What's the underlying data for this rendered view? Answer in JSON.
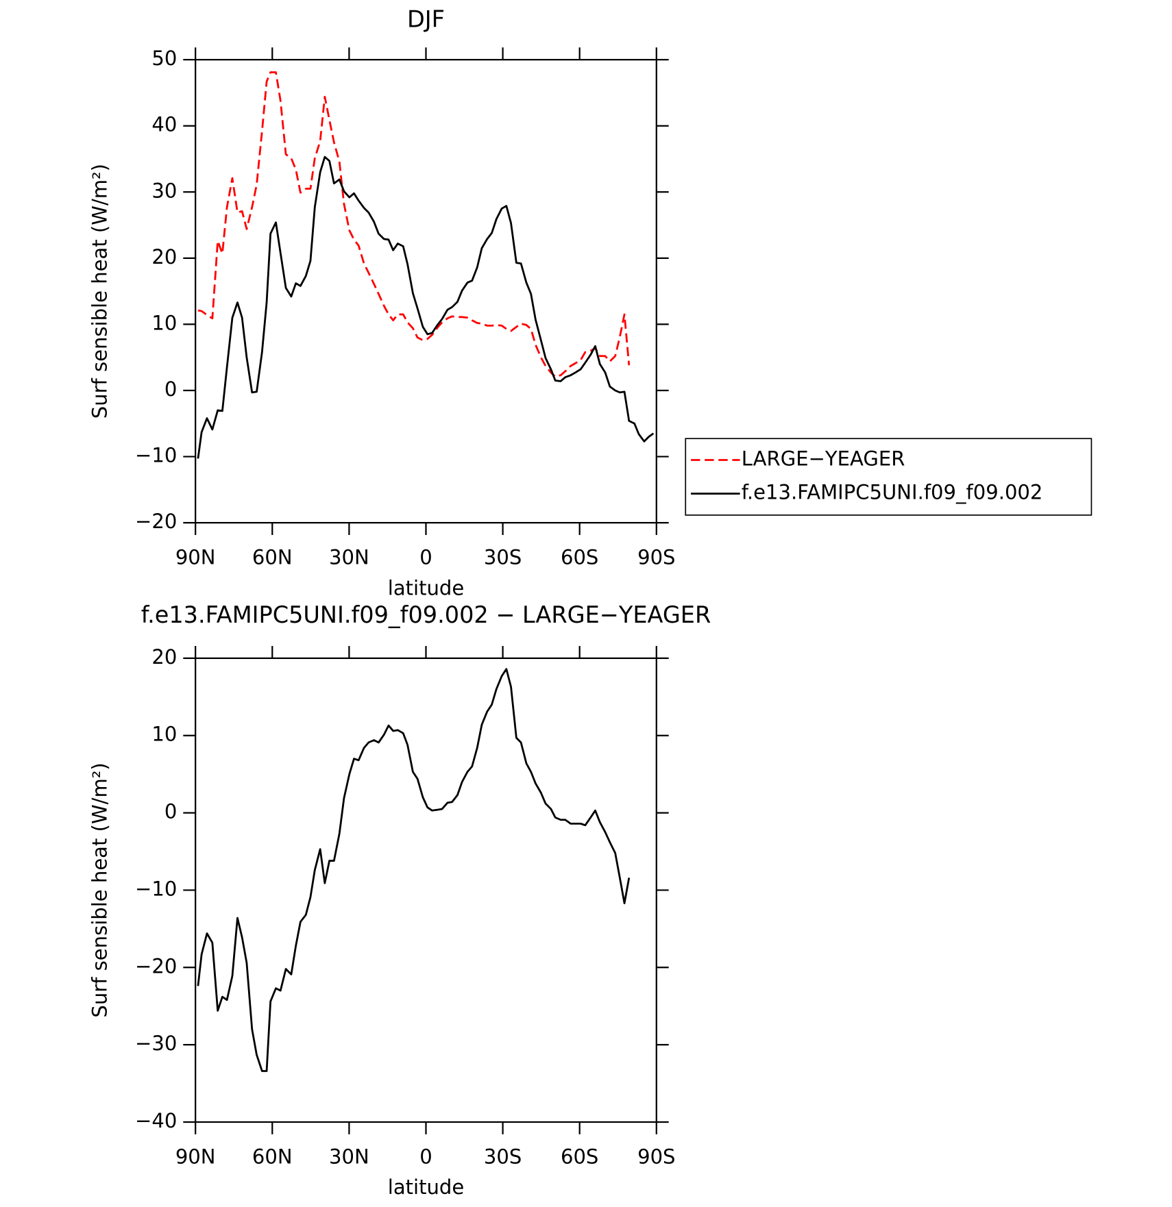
{
  "chart_data": [
    {
      "type": "line",
      "title": "DJF",
      "xlabel": "latitude",
      "ylabel": "Surf sensible heat (W/m²)",
      "xlim": [
        90,
        -90
      ],
      "xticks": [
        {
          "value": 90,
          "label": "90N"
        },
        {
          "value": 60,
          "label": "60N"
        },
        {
          "value": 30,
          "label": "30N"
        },
        0,
        {
          "value": -30,
          "label": "30S"
        },
        {
          "value": -60,
          "label": "60S"
        },
        {
          "value": -90,
          "label": "90S"
        }
      ],
      "ylim": [
        -20,
        50
      ],
      "yticks": [
        {
          "value": -20,
          "label": "−20"
        },
        {
          "value": -10,
          "label": "−10"
        },
        0,
        10,
        20,
        30,
        40,
        50
      ],
      "legend": "right",
      "x": [
        89,
        87.6,
        85.5,
        83.4,
        81.3,
        79.5,
        77.7,
        75.6,
        73.6,
        71.8,
        70,
        67.9,
        66.1,
        64,
        62.2,
        60.7,
        58.6,
        56.8,
        54.7,
        52.6,
        50.8,
        49,
        46.9,
        45.1,
        43.4,
        41.3,
        39.5,
        37.7,
        35.9,
        33.8,
        32,
        29.9,
        28.1,
        26.3,
        24.2,
        22.4,
        20.3,
        18.5,
        16.4,
        14.6,
        12.8,
        11,
        8.9,
        7.2,
        5.1,
        3.3,
        1.2,
        -0.6,
        -2.4,
        -4.5,
        -6.3,
        -8.4,
        -10.2,
        -12.3,
        -14.1,
        -16.2,
        -18,
        -20,
        -21.8,
        -23.9,
        -25.7,
        -27.5,
        -29.6,
        -31.4,
        -33.2,
        -35.3,
        -37.1,
        -39.2,
        -41,
        -42.8,
        -44.9,
        -46.7,
        -48.8,
        -50.5,
        -52.6,
        -54.4,
        -56.5,
        -58.3,
        -60.4,
        -62.2,
        -64.3,
        -66.1,
        -67.9,
        -70,
        -71.8,
        -73.9,
        -75.7,
        -77.5,
        -79.3,
        -81.4,
        -83.1,
        -85.2,
        -87,
        -88.8
      ],
      "series": [
        {
          "name": "LARGE−YEAGER",
          "color": "#ff0000",
          "dash": "dashed",
          "values": [
            12.1,
            12,
            11.4,
            10.9,
            22.6,
            20.7,
            27.7,
            32.1,
            26.9,
            27.1,
            24.4,
            27.7,
            31.1,
            39.2,
            46.7,
            48.1,
            48.1,
            43.8,
            35.7,
            35.1,
            33.4,
            29.9,
            30.5,
            30.5,
            35.1,
            37.7,
            44.4,
            40.9,
            37.5,
            34.6,
            28.2,
            24.2,
            22.8,
            21.9,
            19.2,
            17.8,
            16.1,
            14.6,
            12.8,
            11.5,
            10.6,
            11.5,
            11.5,
            10.3,
            9.4,
            8,
            7.6,
            7.8,
            8.4,
            9.5,
            10.3,
            10.9,
            11.2,
            11.1,
            11.1,
            11,
            10.6,
            10.2,
            10.1,
            9.8,
            9.8,
            9.9,
            9.8,
            9.3,
            9,
            9.6,
            10.1,
            9.9,
            9.3,
            6.9,
            5,
            3.7,
            2.7,
            2.1,
            2.3,
            2.9,
            3.7,
            4.1,
            4.6,
            5.8,
            6,
            6.4,
            5.2,
            5.2,
            4.4,
            5.2,
            8.1,
            11.5,
            3.8,
            null,
            null,
            null,
            null,
            null
          ]
        },
        {
          "name": "f.e13.FAMIPC5UNI.f09_f09.002",
          "color": "#000000",
          "dash": "solid",
          "values": [
            -10.3,
            -6.3,
            -4.2,
            -5.9,
            -3.0,
            -3.1,
            3.5,
            11,
            13.3,
            11,
            5,
            -0.3,
            -0.2,
            5.8,
            13.3,
            23.7,
            25.4,
            20.8,
            15.5,
            14.2,
            16.2,
            15.8,
            17.3,
            19.6,
            27.7,
            33,
            35.3,
            34.7,
            31.3,
            31.9,
            30.1,
            29.2,
            29.8,
            28.7,
            27.6,
            26.9,
            25.5,
            23.7,
            22.9,
            22.8,
            21.2,
            22.2,
            21.8,
            19.1,
            14.7,
            12.4,
            9.6,
            8.5,
            8.7,
            9.9,
            10.8,
            12.2,
            12.6,
            13.4,
            15.1,
            16.3,
            16.6,
            18.6,
            21.5,
            22.9,
            23.8,
            25.9,
            27.5,
            27.9,
            25.3,
            19.3,
            19.2,
            16.3,
            14.6,
            10.7,
            7.6,
            4.9,
            3.2,
            1.5,
            1.4,
            2,
            2.3,
            2.7,
            3.2,
            4.2,
            5.4,
            6.7,
            4,
            2.7,
            0.6,
            0,
            -0.3,
            -0.2,
            -4.6,
            -5,
            -6.6,
            -7.7,
            -7,
            -6.5
          ]
        }
      ]
    },
    {
      "type": "line",
      "title": "f.e13.FAMIPC5UNI.f09_f09.002 − LARGE−YEAGER",
      "xlabel": "latitude",
      "ylabel": "Surf sensible heat (W/m²)",
      "xlim": [
        90,
        -90
      ],
      "xticks": [
        {
          "value": 90,
          "label": "90N"
        },
        {
          "value": 60,
          "label": "60N"
        },
        {
          "value": 30,
          "label": "30N"
        },
        0,
        {
          "value": -30,
          "label": "30S"
        },
        {
          "value": -60,
          "label": "60S"
        },
        {
          "value": -90,
          "label": "90S"
        }
      ],
      "ylim": [
        -40,
        20
      ],
      "yticks": [
        {
          "value": -40,
          "label": "−40"
        },
        {
          "value": -30,
          "label": "−30"
        },
        {
          "value": -20,
          "label": "−20"
        },
        {
          "value": -10,
          "label": "−10"
        },
        0,
        10,
        20
      ],
      "x": [
        89,
        87.6,
        85.5,
        83.4,
        81.3,
        79.5,
        77.7,
        75.6,
        73.6,
        71.8,
        70,
        67.9,
        66.1,
        64,
        62.2,
        60.7,
        58.6,
        56.8,
        54.7,
        52.6,
        50.8,
        49,
        46.9,
        45.1,
        43.4,
        41.3,
        39.5,
        37.7,
        35.9,
        33.8,
        32,
        29.9,
        28.1,
        26.3,
        24.2,
        22.4,
        20.3,
        18.5,
        16.4,
        14.6,
        12.8,
        11,
        8.9,
        7.2,
        5.1,
        3.3,
        1.2,
        -0.6,
        -2.4,
        -4.5,
        -6.3,
        -8.4,
        -10.2,
        -12.3,
        -14.1,
        -16.2,
        -18,
        -20,
        -21.8,
        -23.9,
        -25.7,
        -27.5,
        -29.6,
        -31.4,
        -33.2,
        -35.3,
        -37.1,
        -39.2,
        -41,
        -42.8,
        -44.9,
        -46.7,
        -48.8,
        -50.5,
        -52.6,
        -54.4,
        -56.5,
        -58.3,
        -60.4,
        -62.2,
        -64.3,
        -66.1,
        -67.9,
        -70,
        -71.8,
        -73.9,
        -75.7,
        -77.5,
        -79.3,
        -81.4,
        -83.1,
        -85.2,
        -87,
        -88.8
      ],
      "color": "#000000",
      "values": [
        -22.4,
        -18.3,
        -15.6,
        -16.8,
        -25.6,
        -23.8,
        -24.2,
        -21.1,
        -13.6,
        -16.1,
        -19.4,
        -28,
        -31.3,
        -33.4,
        -33.4,
        -24.4,
        -22.7,
        -23,
        -20.2,
        -20.9,
        -17.2,
        -14.1,
        -13.2,
        -10.9,
        -7.4,
        -4.7,
        -9.1,
        -6.2,
        -6.2,
        -2.7,
        1.9,
        5,
        7,
        6.8,
        8.4,
        9.1,
        9.4,
        9.1,
        10.1,
        11.3,
        10.6,
        10.7,
        10.3,
        8.8,
        5.3,
        4.4,
        2,
        0.7,
        0.3,
        0.4,
        0.5,
        1.3,
        1.4,
        2.3,
        4,
        5.3,
        6,
        8.4,
        11.4,
        13.1,
        14,
        16,
        17.7,
        18.6,
        16.3,
        9.7,
        9.1,
        6.4,
        5.3,
        3.8,
        2.6,
        1.2,
        0.5,
        -0.6,
        -0.9,
        -0.9,
        -1.4,
        -1.4,
        -1.4,
        -1.6,
        -0.6,
        0.3,
        -1.2,
        -2.5,
        -3.8,
        -5.2,
        -8.4,
        -11.7,
        -8.4,
        null,
        null,
        null,
        null,
        null
      ]
    }
  ]
}
